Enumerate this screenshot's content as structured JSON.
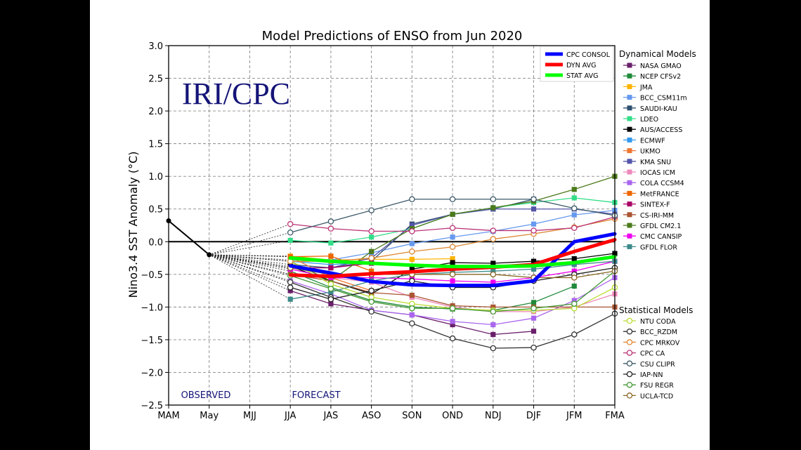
{
  "chart_data": {
    "type": "line",
    "title": "Model Predictions of ENSO from Jun 2020",
    "ylabel": "Nino3.4 SST Anomaly (°C)",
    "xlabel": "",
    "categories": [
      "MAM",
      "May",
      "MJJ",
      "JJA",
      "JAS",
      "ASO",
      "SON",
      "OND",
      "NDJ",
      "DJF",
      "JFM",
      "FMA"
    ],
    "ylim": [
      -2.5,
      3.0
    ],
    "yticks": [
      "3.0",
      "2.5",
      "2.0",
      "1.5",
      "1.0",
      "0.5",
      "0.0",
      "−0.5",
      "−1.0",
      "−1.5",
      "−2.0",
      "−2.5"
    ],
    "grid": true,
    "watermark": "IRI/CPC",
    "observed_label": "OBSERVED",
    "forecast_label": "FORECAST",
    "observed": [
      0.32,
      -0.2
    ],
    "summary_legend": [
      {
        "name": "CPC CONSOL",
        "color": "#0000ff",
        "values": [
          -0.37,
          -0.48,
          -0.61,
          -0.66,
          -0.67,
          -0.67,
          -0.6,
          0.0,
          0.12
        ]
      },
      {
        "name": "DYN AVG",
        "color": "#ff0000",
        "values": [
          -0.51,
          -0.53,
          -0.49,
          -0.46,
          -0.42,
          -0.39,
          -0.35,
          -0.15,
          0.03
        ]
      },
      {
        "name": "STAT AVG",
        "color": "#00ff00",
        "values": [
          -0.25,
          -0.3,
          -0.33,
          -0.36,
          -0.38,
          -0.38,
          -0.37,
          -0.32,
          -0.23
        ]
      }
    ],
    "dynamical_title": "Dynamical Models",
    "statistical_title": "Statistical Models",
    "dynamical": [
      {
        "name": "NASA GMAO",
        "color": "#6a1f6a",
        "values": [
          -0.75,
          -0.95,
          -1.05,
          -1.12,
          -1.27,
          -1.42,
          -1.37
        ]
      },
      {
        "name": "NCEP CFSv2",
        "color": "#1f8a3a",
        "values": [
          -0.45,
          -0.7,
          -0.9,
          -1.0,
          -1.03,
          -1.05,
          -0.93,
          -0.68
        ]
      },
      {
        "name": "JMA",
        "color": "#ffb400",
        "values": [
          -0.22,
          -0.28,
          -0.27,
          -0.27,
          -0.26
        ]
      },
      {
        "name": "BCC_CSM11m",
        "color": "#6699ee",
        "values": [
          -0.28,
          -0.28,
          -0.17,
          -0.03,
          0.07,
          0.16,
          0.27,
          0.41,
          0.48
        ]
      },
      {
        "name": "SAUDI-KAU",
        "color": "#2f4f6f",
        "values": [
          -0.35,
          -0.4,
          -0.3,
          0.27,
          0.42,
          0.5,
          0.65
        ]
      },
      {
        "name": "LDEO",
        "color": "#33dd88",
        "values": [
          0.02,
          -0.02,
          0.07,
          0.2,
          0.42,
          0.52,
          0.6,
          0.67,
          0.6
        ]
      },
      {
        "name": "AUS/ACCESS",
        "color": "#000000",
        "values": [
          -0.38,
          -0.6,
          -0.8,
          -0.42,
          -0.32,
          -0.33,
          -0.3,
          -0.26,
          -0.18
        ]
      },
      {
        "name": "ECMWF",
        "color": "#3399ee",
        "values": [
          -0.3,
          -0.35,
          -0.32
        ]
      },
      {
        "name": "UKMO",
        "color": "#ee7733",
        "values": [
          -0.23,
          -0.55,
          -0.75
        ]
      },
      {
        "name": "KMA SNU",
        "color": "#5555aa",
        "values": [
          -0.4,
          -0.4,
          -0.25,
          0.25,
          0.42,
          0.5,
          0.5,
          0.5,
          0.42
        ]
      },
      {
        "name": "IOCAS ICM",
        "color": "#ee88bb",
        "values": [
          -0.5,
          -0.55,
          -0.62,
          -0.85,
          -1.0,
          -1.07,
          -1.07,
          -1.0,
          -0.8
        ]
      },
      {
        "name": "COLA CCSM4",
        "color": "#aa66ee",
        "values": [
          -0.6,
          -0.8,
          -1.05,
          -1.12,
          -1.22,
          -1.27,
          -1.17,
          -0.9,
          -0.55
        ]
      },
      {
        "name": "MetFRANCE",
        "color": "#ee6600",
        "values": [
          -0.23,
          -0.22,
          -0.45
        ]
      },
      {
        "name": "SINTEX-F",
        "color": "#aa0066",
        "values": [
          -0.4,
          -0.4,
          -0.33
        ]
      },
      {
        "name": "CS-IRI-MM",
        "color": "#aa5533",
        "values": [
          -0.5,
          -0.6,
          -0.78,
          -0.82,
          -0.98,
          -1.0,
          -1.0,
          -1.0,
          -1.0
        ]
      },
      {
        "name": "GFDL CM2.1",
        "color": "#4b7a1b",
        "values": [
          -0.3,
          -0.6,
          -0.15,
          0.2,
          0.42,
          0.52,
          0.62,
          0.8,
          1.0
        ]
      },
      {
        "name": "CMC CANSIP",
        "color": "#ee00ee",
        "values": [
          -0.42,
          -0.55,
          -0.55,
          -0.57,
          -0.6,
          -0.62,
          -0.55,
          -0.45,
          -0.3
        ]
      },
      {
        "name": "GFDL FLOR",
        "color": "#3d8a8a",
        "values": [
          -0.88,
          -0.77,
          -0.6,
          -0.5,
          -0.47,
          -0.45,
          -0.42,
          -0.35,
          -0.3
        ]
      }
    ],
    "statistical": [
      {
        "name": "NTU CODA",
        "color": "#bbdd33",
        "values": [
          -0.3,
          -0.65,
          -0.85,
          -0.95,
          -1.02,
          -1.05,
          -1.05,
          -1.02,
          -0.7
        ]
      },
      {
        "name": "BCC_RZDM",
        "color": "#333333",
        "values": [
          -0.62,
          -0.85,
          -1.07,
          -1.25,
          -1.48,
          -1.63,
          -1.62,
          -1.42,
          -1.1
        ]
      },
      {
        "name": "CPC MRKOV",
        "color": "#dd8833",
        "values": [
          -0.3,
          -0.3,
          -0.25,
          -0.15,
          -0.08,
          0.04,
          0.12,
          0.22,
          0.35
        ]
      },
      {
        "name": "CPC CA",
        "color": "#bb3377",
        "values": [
          0.27,
          0.2,
          0.16,
          0.16,
          0.21,
          0.17,
          0.17,
          0.21,
          0.38
        ]
      },
      {
        "name": "CSU CLIPR",
        "color": "#3d5a6a",
        "values": [
          0.14,
          0.31,
          0.48,
          0.65,
          0.65,
          0.65,
          0.65,
          0.51,
          0.4
        ]
      },
      {
        "name": "IAP-NN",
        "color": "#222222",
        "values": [
          -0.7,
          -0.88,
          -0.75,
          -0.6,
          -0.7,
          -0.7,
          -0.6,
          -0.5,
          -0.4
        ]
      },
      {
        "name": "FSU REGR",
        "color": "#449933",
        "values": [
          -0.52,
          -0.72,
          -0.92,
          -1.02,
          -1.02,
          -1.07,
          -1.02,
          -0.95,
          -0.45
        ]
      },
      {
        "name": "UCLA-TCD",
        "color": "#886622",
        "values": [
          -0.4,
          -0.5,
          -0.5,
          -0.5,
          -0.5,
          -0.5,
          -0.55,
          -0.55,
          -0.45
        ]
      }
    ]
  }
}
